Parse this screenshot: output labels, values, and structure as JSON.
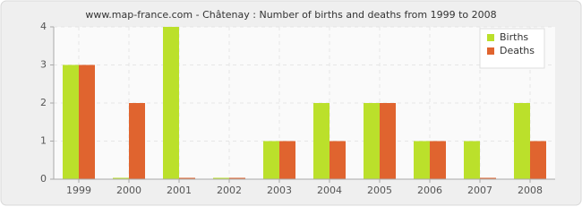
{
  "chart_data": {
    "type": "bar",
    "title": "www.map-france.com - Châtenay : Number of births and deaths from 1999 to 2008",
    "categories": [
      "1999",
      "2000",
      "2001",
      "2002",
      "2003",
      "2004",
      "2005",
      "2006",
      "2007",
      "2008"
    ],
    "series": [
      {
        "name": "Births",
        "color": "#bbe02b",
        "values": [
          3,
          0,
          4,
          0,
          1,
          2,
          2,
          1,
          1,
          2
        ]
      },
      {
        "name": "Deaths",
        "color": "#e0642f",
        "values": [
          3,
          2,
          0,
          0,
          1,
          1,
          2,
          1,
          0,
          1
        ]
      }
    ],
    "ylim": [
      0,
      4
    ],
    "yticks": [
      0,
      1,
      2,
      3,
      4
    ],
    "grid": true,
    "legend": "top-right"
  }
}
